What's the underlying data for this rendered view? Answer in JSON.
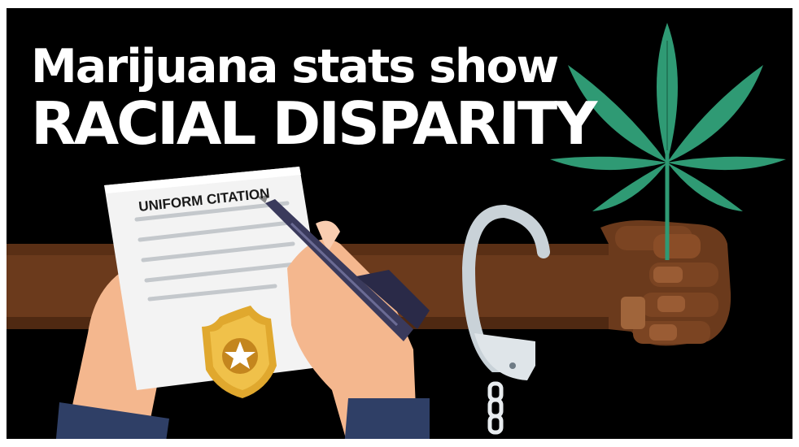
{
  "headline": {
    "line1": "Marijuana stats show",
    "line2": "RACIAL DISPARITY"
  },
  "citation": {
    "title": "UNIFORM CITATION"
  },
  "colors": {
    "background": "#000000",
    "arm": "#6b3a1c",
    "hand": "#f4b78e",
    "leaf": "#2f9a74",
    "badge": "#e0a82e"
  },
  "icons": [
    "cannabis-leaf-icon",
    "handcuff-icon",
    "police-badge-icon",
    "pen-icon"
  ]
}
